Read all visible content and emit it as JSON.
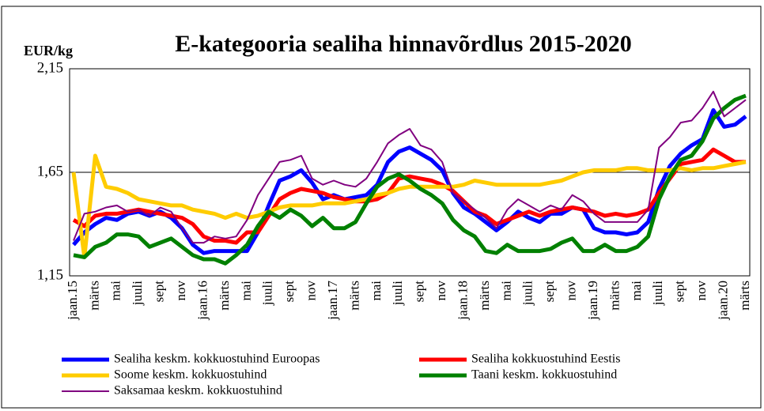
{
  "chart_data": {
    "type": "line",
    "title": "E-kategooria sealiha hinnavõrdlus 2015-2020",
    "y_label": "EUR/kg",
    "categories": [
      "jaan.15",
      null,
      "märts",
      null,
      "mai",
      null,
      "juuli",
      null,
      "sept",
      null,
      "nov",
      null,
      "jaan.16",
      null,
      "märts",
      null,
      "mai",
      null,
      "juuli",
      null,
      "sept",
      null,
      "nov",
      null,
      "jaan.17",
      null,
      "märts",
      null,
      "mai",
      null,
      "juuli",
      null,
      "sept",
      null,
      "nov",
      null,
      "jaan.18",
      null,
      "märts",
      null,
      "mai",
      null,
      "juuli",
      null,
      "sept",
      null,
      "nov",
      null,
      "jaan.19",
      null,
      "märts",
      null,
      "mai",
      null,
      "juuli",
      null,
      "sept",
      null,
      "nov",
      null,
      "jaan.20",
      null,
      "märts"
    ],
    "ylim": [
      1.15,
      2.15
    ],
    "yticks": [
      {
        "value": 1.15,
        "label": "1,15"
      },
      {
        "value": 1.65,
        "label": "1,65"
      },
      {
        "value": 2.15,
        "label": "2,15"
      }
    ],
    "grid": true,
    "series": [
      {
        "name": "Sealiha keskm. kokkuostuhind Euroopas",
        "color": "#0000ff",
        "width": 5,
        "values": [
          1.3,
          1.36,
          1.4,
          1.43,
          1.42,
          1.45,
          1.46,
          1.44,
          1.46,
          1.43,
          1.38,
          1.3,
          1.26,
          1.27,
          1.27,
          1.27,
          1.27,
          1.36,
          1.49,
          1.61,
          1.63,
          1.66,
          1.6,
          1.52,
          1.54,
          1.52,
          1.53,
          1.54,
          1.59,
          1.7,
          1.75,
          1.77,
          1.74,
          1.71,
          1.66,
          1.55,
          1.48,
          1.45,
          1.41,
          1.37,
          1.41,
          1.46,
          1.43,
          1.41,
          1.45,
          1.45,
          1.48,
          1.47,
          1.38,
          1.36,
          1.36,
          1.35,
          1.36,
          1.41,
          1.57,
          1.68,
          1.74,
          1.78,
          1.81,
          1.95,
          1.87,
          1.88,
          1.92
        ]
      },
      {
        "name": "Sealiha kokkuostuhind Eestis",
        "color": "#ff0000",
        "width": 5,
        "values": [
          1.42,
          1.39,
          1.44,
          1.45,
          1.45,
          1.46,
          1.47,
          1.46,
          1.45,
          1.44,
          1.43,
          1.4,
          1.34,
          1.32,
          1.32,
          1.31,
          1.36,
          1.36,
          1.44,
          1.52,
          1.55,
          1.57,
          1.56,
          1.55,
          1.53,
          1.52,
          1.51,
          1.51,
          1.52,
          1.55,
          1.62,
          1.63,
          1.62,
          1.61,
          1.59,
          1.56,
          1.51,
          1.46,
          1.44,
          1.4,
          1.42,
          1.44,
          1.46,
          1.44,
          1.46,
          1.47,
          1.48,
          1.47,
          1.46,
          1.44,
          1.45,
          1.44,
          1.45,
          1.47,
          1.55,
          1.62,
          1.69,
          1.7,
          1.71,
          1.76,
          1.73,
          1.7,
          1.7
        ]
      },
      {
        "name": "Soome keskm. kokkuostuhind",
        "color": "#ffcc00",
        "width": 5,
        "values": [
          1.65,
          1.24,
          1.73,
          1.58,
          1.57,
          1.55,
          1.52,
          1.51,
          1.5,
          1.49,
          1.49,
          1.47,
          1.46,
          1.45,
          1.43,
          1.45,
          1.43,
          1.44,
          1.46,
          1.48,
          1.49,
          1.49,
          1.49,
          1.5,
          1.5,
          1.5,
          1.51,
          1.52,
          1.54,
          1.55,
          1.57,
          1.58,
          1.58,
          1.58,
          1.58,
          1.58,
          1.59,
          1.61,
          1.6,
          1.59,
          1.59,
          1.59,
          1.59,
          1.59,
          1.6,
          1.61,
          1.63,
          1.65,
          1.66,
          1.66,
          1.66,
          1.67,
          1.67,
          1.66,
          1.66,
          1.66,
          1.67,
          1.66,
          1.67,
          1.67,
          1.68,
          1.69,
          1.7
        ]
      },
      {
        "name": "Taani keskm. kokkuostuhind",
        "color": "#008000",
        "width": 5,
        "values": [
          1.25,
          1.24,
          1.29,
          1.31,
          1.35,
          1.35,
          1.34,
          1.29,
          1.31,
          1.33,
          1.29,
          1.25,
          1.23,
          1.23,
          1.21,
          1.25,
          1.3,
          1.39,
          1.46,
          1.43,
          1.47,
          1.44,
          1.39,
          1.43,
          1.38,
          1.38,
          1.41,
          1.5,
          1.58,
          1.62,
          1.64,
          1.61,
          1.57,
          1.54,
          1.5,
          1.42,
          1.37,
          1.34,
          1.27,
          1.26,
          1.3,
          1.27,
          1.27,
          1.27,
          1.28,
          1.31,
          1.33,
          1.27,
          1.27,
          1.3,
          1.27,
          1.27,
          1.29,
          1.34,
          1.52,
          1.63,
          1.71,
          1.73,
          1.8,
          1.91,
          1.96,
          2.0,
          2.02
        ]
      },
      {
        "name": "Saksamaa keskm. kokkuostuhind",
        "color": "#800080",
        "width": 2,
        "values": [
          1.32,
          1.45,
          1.46,
          1.48,
          1.49,
          1.46,
          1.47,
          1.44,
          1.48,
          1.46,
          1.38,
          1.31,
          1.31,
          1.34,
          1.33,
          1.34,
          1.42,
          1.54,
          1.62,
          1.7,
          1.71,
          1.73,
          1.62,
          1.59,
          1.61,
          1.59,
          1.58,
          1.62,
          1.7,
          1.79,
          1.83,
          1.86,
          1.78,
          1.76,
          1.7,
          1.55,
          1.51,
          1.47,
          1.43,
          1.38,
          1.47,
          1.52,
          1.49,
          1.46,
          1.49,
          1.47,
          1.54,
          1.51,
          1.45,
          1.41,
          1.41,
          1.41,
          1.41,
          1.47,
          1.77,
          1.82,
          1.89,
          1.9,
          1.96,
          2.04,
          1.92,
          1.96,
          2.0
        ]
      }
    ]
  }
}
